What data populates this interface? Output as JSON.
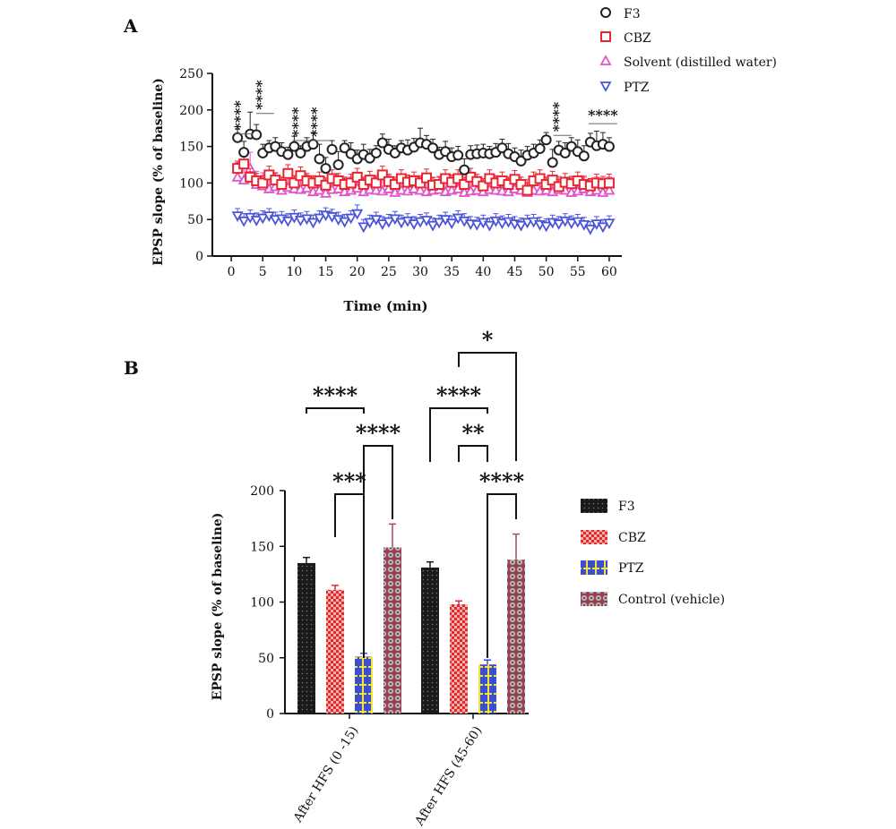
{
  "panel_a_label": "A",
  "panel_b_label": "B",
  "chart_data": [
    {
      "type": "scatter",
      "panel": "A",
      "xlabel": "Time (min)",
      "ylabel": "EPSP slope (% of baseline)",
      "xlim": [
        -3,
        62
      ],
      "ylim": [
        0,
        250
      ],
      "xticks": [
        "0",
        "5",
        "10",
        "15",
        "20",
        "25",
        "30",
        "35",
        "40",
        "45",
        "50",
        "55",
        "60"
      ],
      "yticks": [
        "0",
        "50",
        "100",
        "150",
        "200",
        "250"
      ],
      "legend_position": "top-right",
      "colors": {
        "F3": "#222222",
        "CBZ": "#e8262f",
        "Solvent": "#e055c8",
        "PTZ": "#4a55d8"
      },
      "significance_labels": [
        "****",
        "****",
        "****",
        "****",
        "****",
        "****"
      ],
      "series": [
        {
          "name": "F3",
          "marker": "circle",
          "x": [
            1,
            2,
            3,
            4,
            5,
            6,
            7,
            8,
            9,
            10,
            11,
            12,
            13,
            14,
            15,
            16,
            17,
            18,
            19,
            20,
            21,
            22,
            23,
            24,
            25,
            26,
            27,
            28,
            29,
            30,
            31,
            32,
            33,
            34,
            35,
            36,
            37,
            38,
            39,
            40,
            41,
            42,
            43,
            44,
            45,
            46,
            47,
            48,
            49,
            50,
            51,
            52,
            53,
            54,
            55,
            56,
            57,
            58,
            59,
            60
          ],
          "y": [
            162,
            142,
            167,
            166,
            141,
            148,
            150,
            143,
            139,
            150,
            141,
            150,
            153,
            133,
            120,
            146,
            125,
            148,
            140,
            133,
            139,
            134,
            141,
            155,
            146,
            141,
            148,
            145,
            149,
            155,
            153,
            148,
            139,
            143,
            136,
            138,
            118,
            139,
            140,
            141,
            140,
            142,
            148,
            140,
            136,
            130,
            138,
            141,
            147,
            159,
            128,
            145,
            141,
            150,
            143,
            137,
            156,
            151,
            153,
            150
          ],
          "err": [
            12,
            15,
            30,
            14,
            12,
            10,
            12,
            12,
            10,
            14,
            10,
            12,
            16,
            20,
            15,
            12,
            18,
            10,
            15,
            12,
            14,
            12,
            10,
            12,
            14,
            10,
            10,
            14,
            12,
            20,
            12,
            12,
            10,
            14,
            12,
            12,
            15,
            12,
            12,
            12,
            10,
            12,
            12,
            14,
            12,
            15,
            12,
            12,
            12,
            10,
            18,
            12,
            14,
            12,
            16,
            14,
            12,
            20,
            16,
            12
          ]
        },
        {
          "name": "CBZ",
          "marker": "square",
          "x": [
            1,
            2,
            3,
            4,
            5,
            6,
            7,
            8,
            9,
            10,
            11,
            12,
            13,
            14,
            15,
            16,
            17,
            18,
            19,
            20,
            21,
            22,
            23,
            24,
            25,
            26,
            27,
            28,
            29,
            30,
            31,
            32,
            33,
            34,
            35,
            36,
            37,
            38,
            39,
            40,
            41,
            42,
            43,
            44,
            45,
            46,
            47,
            48,
            49,
            50,
            51,
            52,
            53,
            54,
            55,
            56,
            57,
            58,
            59,
            60
          ],
          "y": [
            120,
            126,
            108,
            103,
            100,
            111,
            104,
            98,
            113,
            100,
            110,
            103,
            100,
            103,
            97,
            106,
            103,
            98,
            100,
            108,
            98,
            104,
            100,
            111,
            102,
            98,
            106,
            101,
            103,
            100,
            107,
            97,
            98,
            106,
            101,
            106,
            98,
            108,
            102,
            96,
            106,
            100,
            103,
            98,
            105,
            98,
            90,
            103,
            106,
            98,
            104,
            95,
            101,
            99,
            103,
            98,
            96,
            100,
            99,
            100
          ],
          "err": [
            10,
            12,
            12,
            10,
            10,
            12,
            10,
            10,
            12,
            10,
            12,
            10,
            10,
            12,
            10,
            12,
            10,
            10,
            12,
            12,
            10,
            12,
            10,
            12,
            10,
            10,
            12,
            10,
            12,
            10,
            12,
            10,
            10,
            12,
            10,
            12,
            10,
            12,
            10,
            10,
            12,
            10,
            12,
            10,
            12,
            10,
            10,
            12,
            12,
            10,
            12,
            10,
            12,
            10,
            12,
            10,
            10,
            12,
            10,
            12
          ]
        },
        {
          "name": "Solvent (distilled water)",
          "marker": "triangle-up",
          "x": [
            1,
            2,
            3,
            4,
            5,
            6,
            7,
            8,
            9,
            10,
            11,
            12,
            13,
            14,
            15,
            16,
            17,
            18,
            19,
            20,
            21,
            22,
            23,
            24,
            25,
            26,
            27,
            28,
            29,
            30,
            31,
            32,
            33,
            34,
            35,
            36,
            37,
            38,
            39,
            40,
            41,
            42,
            43,
            44,
            45,
            46,
            47,
            48,
            49,
            50,
            51,
            52,
            53,
            54,
            55,
            56,
            57,
            58,
            59,
            60
          ],
          "y": [
            108,
            104,
            120,
            98,
            96,
            92,
            95,
            90,
            94,
            92,
            91,
            93,
            88,
            90,
            86,
            91,
            92,
            88,
            90,
            93,
            88,
            91,
            90,
            89,
            92,
            87,
            90,
            89,
            92,
            90,
            88,
            90,
            91,
            88,
            90,
            92,
            87,
            89,
            90,
            88,
            91,
            90,
            89,
            88,
            92,
            90,
            87,
            90,
            89,
            90,
            88,
            91,
            90,
            87,
            89,
            92,
            88,
            90,
            87,
            90
          ],
          "err": [
            20,
            20,
            22,
            18,
            18,
            18,
            18,
            18,
            18,
            18,
            18,
            18,
            18,
            18,
            18,
            18,
            18,
            18,
            18,
            18,
            18,
            18,
            18,
            18,
            18,
            18,
            18,
            18,
            18,
            18,
            18,
            18,
            18,
            18,
            18,
            18,
            18,
            18,
            18,
            18,
            18,
            18,
            18,
            18,
            18,
            18,
            18,
            18,
            18,
            18,
            18,
            18,
            18,
            18,
            18,
            18,
            18,
            18,
            18,
            18
          ]
        },
        {
          "name": "PTZ",
          "marker": "triangle-down",
          "x": [
            1,
            2,
            3,
            4,
            5,
            6,
            7,
            8,
            9,
            10,
            11,
            12,
            13,
            14,
            15,
            16,
            17,
            18,
            19,
            20,
            21,
            22,
            23,
            24,
            25,
            26,
            27,
            28,
            29,
            30,
            31,
            32,
            33,
            34,
            35,
            36,
            37,
            38,
            39,
            40,
            41,
            42,
            43,
            44,
            45,
            46,
            47,
            48,
            49,
            50,
            51,
            52,
            53,
            54,
            55,
            56,
            57,
            58,
            59,
            60
          ],
          "y": [
            55,
            48,
            53,
            49,
            52,
            55,
            50,
            51,
            48,
            53,
            49,
            51,
            46,
            52,
            56,
            54,
            50,
            47,
            52,
            58,
            40,
            46,
            50,
            44,
            47,
            51,
            46,
            48,
            44,
            47,
            49,
            42,
            46,
            50,
            45,
            52,
            48,
            44,
            43,
            46,
            42,
            48,
            45,
            47,
            44,
            42,
            46,
            47,
            43,
            41,
            46,
            44,
            48,
            45,
            47,
            43,
            37,
            44,
            40,
            45
          ],
          "err": [
            10,
            10,
            10,
            10,
            10,
            10,
            10,
            10,
            10,
            10,
            10,
            10,
            10,
            10,
            10,
            10,
            10,
            10,
            10,
            12,
            10,
            10,
            10,
            10,
            10,
            10,
            10,
            10,
            10,
            10,
            10,
            10,
            10,
            10,
            10,
            10,
            10,
            10,
            10,
            10,
            10,
            10,
            10,
            10,
            10,
            10,
            10,
            10,
            10,
            10,
            10,
            10,
            10,
            10,
            10,
            10,
            10,
            10,
            10,
            10
          ]
        }
      ]
    },
    {
      "type": "bar",
      "panel": "B",
      "ylabel": "EPSP slope (% of baseline)",
      "ylim": [
        0,
        200
      ],
      "yticks": [
        "0",
        "50",
        "100",
        "150",
        "200"
      ],
      "categories": [
        "After HFS (0 -15)",
        "After HFS (45-60)"
      ],
      "legend_position": "right",
      "series": [
        {
          "name": "F3",
          "color": "#1a1a1a",
          "values": [
            135,
            131
          ],
          "err": [
            5,
            5
          ]
        },
        {
          "name": "CBZ",
          "color": "#e8262f",
          "values": [
            111,
            98
          ],
          "err": [
            4,
            3
          ]
        },
        {
          "name": "PTZ",
          "color": "#3a4fd0",
          "values": [
            51,
            44
          ],
          "err": [
            3,
            4
          ]
        },
        {
          "name": "Control (vehicle)",
          "color": "#a8446e",
          "values": [
            149,
            138
          ],
          "err": [
            21,
            23
          ]
        }
      ],
      "significance": [
        {
          "group": 0,
          "from": 0,
          "to": 2,
          "label": "****"
        },
        {
          "group": 0,
          "from": 1,
          "to": 2,
          "label": "***"
        },
        {
          "group": 0,
          "from": 2,
          "to": 3,
          "label": "****"
        },
        {
          "group": 1,
          "from": 0,
          "to": 2,
          "label": "****"
        },
        {
          "group": 1,
          "from": 1,
          "to": 2,
          "label": "**"
        },
        {
          "group": 1,
          "from": 2,
          "to": 3,
          "label": "****"
        },
        {
          "group": 1,
          "from": 1,
          "to": 3,
          "label": "*"
        }
      ]
    }
  ]
}
